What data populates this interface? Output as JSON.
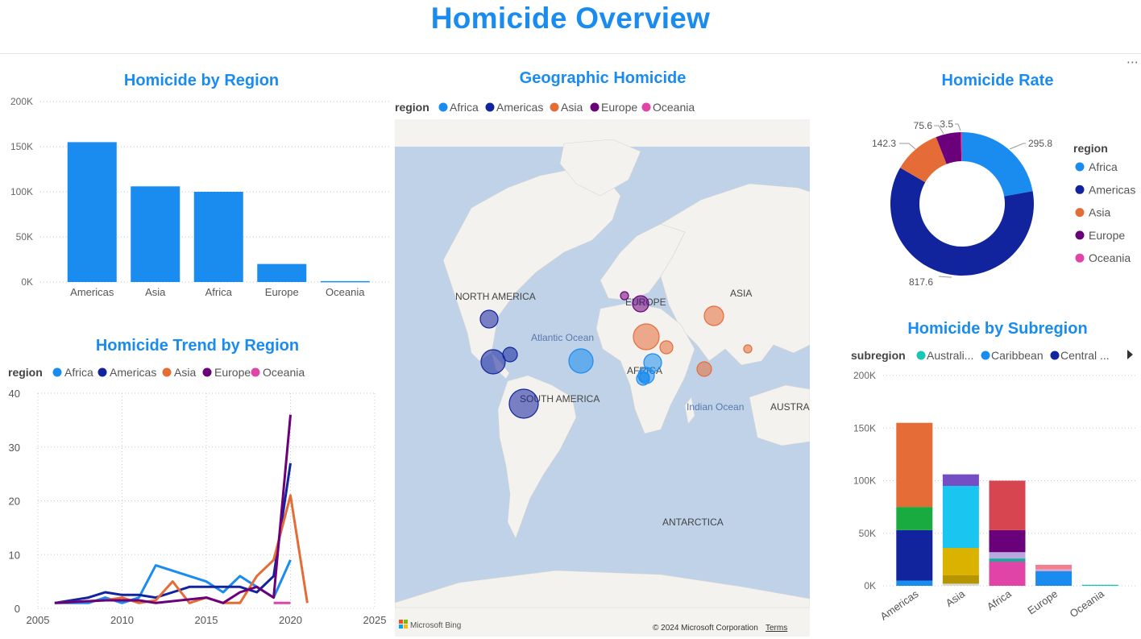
{
  "page": {
    "title": "Homicide Overview",
    "more_icon": "more-options-icon"
  },
  "colors": {
    "Africa": "#1a8cf0",
    "Americas": "#12239e",
    "Asia": "#e66c37",
    "Europe": "#6b007b",
    "Oceania": "#e044a7",
    "title": "#1a8cf0"
  },
  "region_chart": {
    "title": "Homicide by Region",
    "y_ticks": [
      "200K",
      "150K",
      "100K",
      "50K",
      "0K"
    ],
    "chart_data": {
      "type": "bar",
      "categories": [
        "Americas",
        "Asia",
        "Africa",
        "Europe",
        "Oceania"
      ],
      "values": [
        155000,
        106000,
        100000,
        20000,
        1000
      ],
      "ylim": [
        0,
        200000
      ]
    }
  },
  "trend_chart": {
    "title": "Homicide Trend by Region",
    "legend_title": "region",
    "legend": [
      "Africa",
      "Americas",
      "Asia",
      "Europe",
      "Oceania"
    ],
    "x_ticks": [
      "2005",
      "2010",
      "2015",
      "2020",
      "2025"
    ],
    "y_ticks": [
      "40",
      "30",
      "20",
      "10",
      "0"
    ],
    "chart_data": {
      "type": "line",
      "xlim": [
        2005,
        2025
      ],
      "ylim": [
        0,
        40
      ],
      "series": [
        {
          "name": "Africa",
          "points": [
            [
              2006,
              1
            ],
            [
              2008,
              1
            ],
            [
              2009,
              2
            ],
            [
              2010,
              1
            ],
            [
              2011,
              2
            ],
            [
              2012,
              8
            ],
            [
              2014,
              6
            ],
            [
              2015,
              5
            ],
            [
              2016,
              3
            ],
            [
              2017,
              6
            ],
            [
              2018,
              4
            ],
            [
              2019,
              2
            ],
            [
              2020,
              9
            ]
          ]
        },
        {
          "name": "Americas",
          "points": [
            [
              2006,
              1
            ],
            [
              2008,
              2
            ],
            [
              2009,
              3
            ],
            [
              2010,
              2.5
            ],
            [
              2011,
              2.5
            ],
            [
              2012,
              2
            ],
            [
              2013,
              3
            ],
            [
              2014,
              4
            ],
            [
              2015,
              4
            ],
            [
              2016,
              4
            ],
            [
              2017,
              4
            ],
            [
              2018,
              3
            ],
            [
              2019,
              6
            ],
            [
              2020,
              27
            ]
          ]
        },
        {
          "name": "Asia",
          "points": [
            [
              2006,
              1
            ],
            [
              2009,
              1.5
            ],
            [
              2010,
              2
            ],
            [
              2011,
              1
            ],
            [
              2012,
              1.5
            ],
            [
              2013,
              5
            ],
            [
              2014,
              1
            ],
            [
              2015,
              2
            ],
            [
              2016,
              1
            ],
            [
              2017,
              1
            ],
            [
              2018,
              6
            ],
            [
              2019,
              9
            ],
            [
              2020,
              21
            ],
            [
              2021,
              1
            ]
          ]
        },
        {
          "name": "Europe",
          "points": [
            [
              2006,
              1
            ],
            [
              2009,
              1.5
            ],
            [
              2011,
              1.5
            ],
            [
              2012,
              1
            ],
            [
              2015,
              2
            ],
            [
              2016,
              1
            ],
            [
              2017,
              3
            ],
            [
              2018,
              4
            ],
            [
              2019,
              2
            ],
            [
              2020,
              36
            ]
          ]
        },
        {
          "name": "Oceania",
          "points": [
            [
              2019,
              1
            ],
            [
              2020,
              1
            ]
          ]
        }
      ]
    }
  },
  "geo_map": {
    "title": "Geographic Homicide",
    "legend_title": "region",
    "legend": [
      "Africa",
      "Americas",
      "Asia",
      "Europe",
      "Oceania"
    ],
    "labels": {
      "north_america": "NORTH AMERICA",
      "south_america": "SOUTH AMERICA",
      "europe": "EUROPE",
      "asia": "ASIA",
      "africa": "AFRICA",
      "atlantic": "Atlantic Ocean",
      "indian": "Indian Ocean",
      "australia": "AUSTRAL",
      "antarctica": "ANTARCTICA"
    },
    "footer_logo": "Microsoft Bing",
    "copyright": "© 2024 Microsoft Corporation",
    "terms": "Terms"
  },
  "rate_chart": {
    "title": "Homicide Rate",
    "legend_title": "region",
    "legend": [
      "Africa",
      "Americas",
      "Asia",
      "Europe",
      "Oceania"
    ],
    "chart_data": {
      "type": "pie",
      "labels": [
        "Africa",
        "Americas",
        "Asia",
        "Europe",
        "Oceania"
      ],
      "values": [
        295.8,
        817.6,
        142.3,
        75.6,
        3.5
      ]
    },
    "value_labels": [
      "295.8",
      "817.6",
      "142.3",
      "75.6",
      "3.5"
    ]
  },
  "subregion_chart": {
    "title": "Homicide by Subregion",
    "legend_title": "subregion",
    "legend": [
      "Australi...",
      "Caribbean",
      "Central ..."
    ],
    "legend_colors": [
      "#1bc7b0",
      "#1a8cf0",
      "#12239e"
    ],
    "y_ticks": [
      "200K",
      "150K",
      "100K",
      "50K",
      "0K"
    ],
    "chart_data": {
      "type": "bar",
      "stacked": true,
      "categories": [
        "Americas",
        "Asia",
        "Africa",
        "Europe",
        "Oceania"
      ],
      "ylim": [
        0,
        200000
      ],
      "stacks": [
        [
          {
            "v": 5000,
            "c": "#1a8cf0"
          },
          {
            "v": 48000,
            "c": "#12239e"
          },
          {
            "v": 22000,
            "c": "#1aab40"
          },
          {
            "v": 80000,
            "c": "#e66c37"
          }
        ],
        [
          {
            "v": 2000,
            "c": "#d9d9d9"
          },
          {
            "v": 8000,
            "c": "#b59500"
          },
          {
            "v": 26000,
            "c": "#d9b300"
          },
          {
            "v": 59000,
            "c": "#1ac6ef"
          },
          {
            "v": 11000,
            "c": "#744ec2"
          }
        ],
        [
          {
            "v": 23000,
            "c": "#e044a7"
          },
          {
            "v": 3000,
            "c": "#1aab9c"
          },
          {
            "v": 6000,
            "c": "#b9a8e0"
          },
          {
            "v": 21000,
            "c": "#6b007b"
          },
          {
            "v": 47000,
            "c": "#d64550"
          }
        ],
        [
          {
            "v": 14000,
            "c": "#1a8cf0"
          },
          {
            "v": 2000,
            "c": "#e0a0c0"
          },
          {
            "v": 4000,
            "c": "#f08090"
          }
        ],
        [
          {
            "v": 1000,
            "c": "#1bc7b0"
          }
        ]
      ]
    }
  }
}
